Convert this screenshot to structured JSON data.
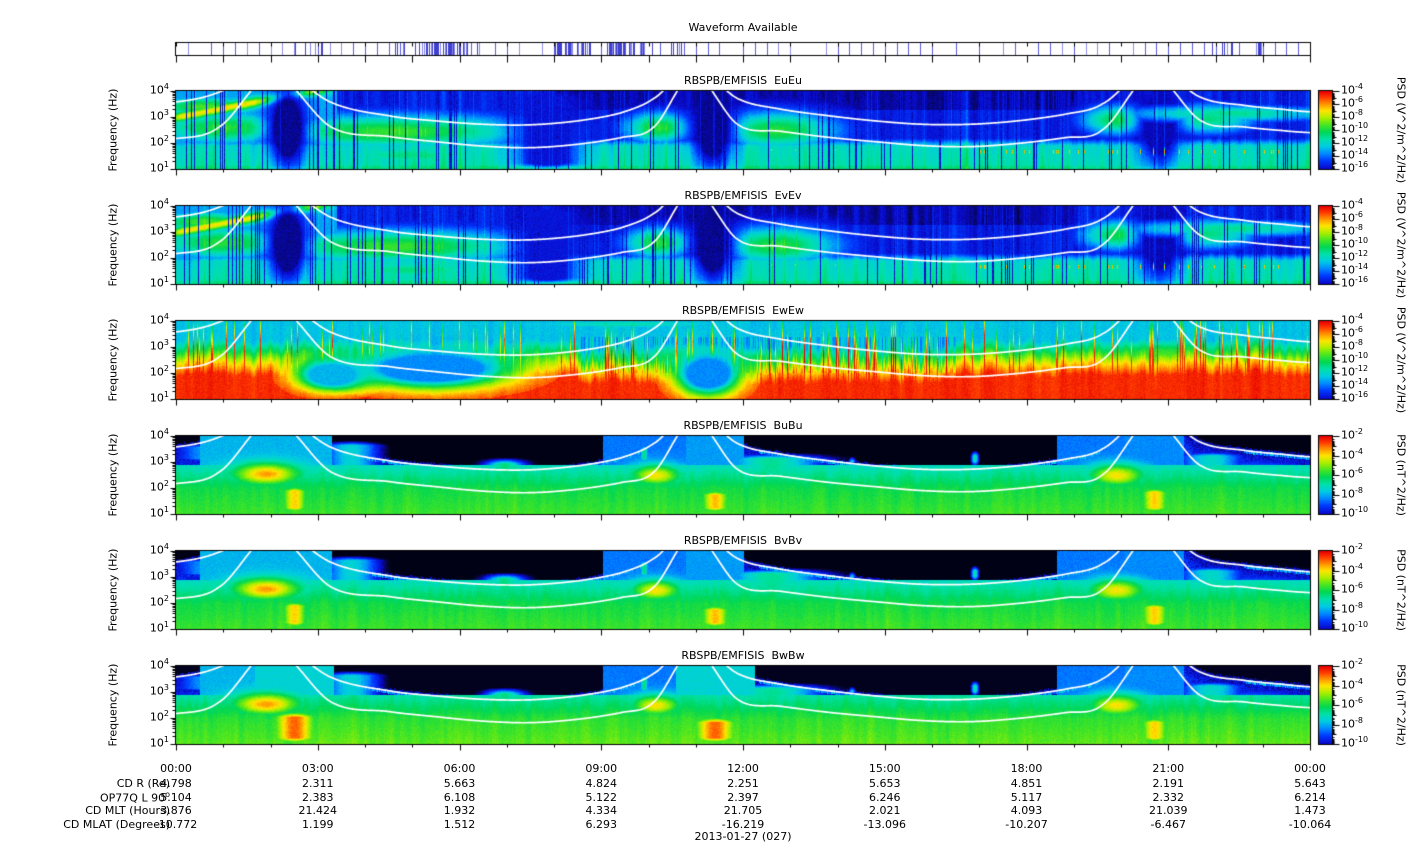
{
  "chart_data": {
    "type": "heatmap",
    "description": "Six 24-hour RBSP-B EMFISIS power spectral density spectrograms (EuEu, EvEv, EwEw electric; BuBu, BvBv, BwBw magnetic) with log frequency axis, rainbow colormap, white electron-cyclotron-related overlay curves, plus a waveform-availability bar.",
    "x_axis": {
      "unit": "hours",
      "range": [
        0,
        24
      ],
      "major_tick_hours": 3,
      "minor_tick_hours": 1,
      "tick_labels": [
        "00:00",
        "03:00",
        "06:00",
        "09:00",
        "12:00",
        "15:00",
        "18:00",
        "21:00",
        "00:00"
      ]
    },
    "y_axis": {
      "label": "Frequency (Hz)",
      "scale": "log",
      "range_exponents": [
        1,
        4
      ],
      "tick_exponents": [
        4,
        3,
        2,
        1
      ]
    },
    "panels": [
      {
        "title": "RBSPB/EMFISIS  EuEu",
        "kind": "E",
        "colorbar": "E",
        "seed": 11
      },
      {
        "title": "RBSPB/EMFISIS  EvEv",
        "kind": "E",
        "colorbar": "E",
        "seed": 22
      },
      {
        "title": "RBSPB/EMFISIS  EwEw",
        "kind": "Ew",
        "colorbar": "E",
        "seed": 33
      },
      {
        "title": "RBSPB/EMFISIS  BuBu",
        "kind": "B",
        "colorbar": "B",
        "seed": 44
      },
      {
        "title": "RBSPB/EMFISIS  BvBv",
        "kind": "B",
        "colorbar": "B",
        "seed": 55
      },
      {
        "title": "RBSPB/EMFISIS  BwBw",
        "kind": "Bw",
        "colorbar": "B",
        "seed": 66
      }
    ],
    "colorbars": {
      "E": {
        "label": "PSD (V^2/m^2/Hz)",
        "exponents": [
          -4,
          -6,
          -8,
          -10,
          -12,
          -14,
          -16
        ],
        "max": -4,
        "min": -16
      },
      "B": {
        "label": "PSD (nT^2/Hz)",
        "exponents": [
          -2,
          -4,
          -6,
          -8,
          -10
        ],
        "max": -2,
        "min": -10
      }
    },
    "colormap_stops": [
      [
        0.0,
        0,
        0,
        0
      ],
      [
        0.055,
        5,
        5,
        60
      ],
      [
        0.13,
        10,
        10,
        205
      ],
      [
        0.22,
        0,
        60,
        255
      ],
      [
        0.3,
        0,
        140,
        255
      ],
      [
        0.38,
        0,
        205,
        225
      ],
      [
        0.46,
        0,
        225,
        170
      ],
      [
        0.54,
        0,
        215,
        85
      ],
      [
        0.62,
        70,
        230,
        35
      ],
      [
        0.7,
        170,
        240,
        0
      ],
      [
        0.78,
        255,
        230,
        0
      ],
      [
        0.86,
        255,
        145,
        0
      ],
      [
        0.93,
        255,
        60,
        0
      ],
      [
        1.0,
        230,
        0,
        0
      ]
    ],
    "white_curves": {
      "upper": [
        [
          0,
          3.58
        ],
        [
          0.9,
          3.95
        ],
        [
          2.05,
          4.9
        ],
        [
          3.3,
          3.55
        ],
        [
          4.5,
          3.05
        ],
        [
          5.5,
          2.85
        ],
        [
          6.5,
          2.72
        ],
        [
          7.5,
          2.7
        ],
        [
          8.5,
          2.85
        ],
        [
          9.4,
          3.15
        ],
        [
          10.1,
          3.7
        ],
        [
          10.95,
          4.9
        ],
        [
          11.9,
          3.7
        ],
        [
          12.8,
          3.3
        ],
        [
          13.8,
          3.05
        ],
        [
          14.8,
          2.85
        ],
        [
          15.8,
          2.72
        ],
        [
          16.8,
          2.72
        ],
        [
          17.8,
          2.85
        ],
        [
          18.8,
          3.1
        ],
        [
          19.6,
          3.5
        ],
        [
          20.65,
          4.9
        ],
        [
          21.7,
          3.75
        ],
        [
          22.6,
          3.45
        ],
        [
          23.4,
          3.3
        ],
        [
          24,
          3.2
        ]
      ],
      "lower": [
        [
          0,
          2.17
        ],
        [
          0.9,
          2.6
        ],
        [
          2.05,
          4.6
        ],
        [
          3.3,
          2.6
        ],
        [
          4.5,
          2.25
        ],
        [
          5.5,
          2.05
        ],
        [
          6.5,
          1.88
        ],
        [
          7.5,
          1.82
        ],
        [
          8.5,
          1.95
        ],
        [
          9.4,
          2.2
        ],
        [
          10.1,
          2.6
        ],
        [
          10.95,
          4.6
        ],
        [
          11.9,
          2.7
        ],
        [
          12.8,
          2.45
        ],
        [
          13.8,
          2.22
        ],
        [
          14.8,
          2.05
        ],
        [
          15.8,
          1.9
        ],
        [
          16.8,
          1.86
        ],
        [
          17.8,
          1.98
        ],
        [
          18.8,
          2.2
        ],
        [
          19.6,
          2.5
        ],
        [
          20.65,
          4.6
        ],
        [
          21.7,
          2.85
        ],
        [
          22.6,
          2.62
        ],
        [
          23.4,
          2.48
        ],
        [
          24,
          2.4
        ]
      ]
    },
    "features": {
      "E": [
        [
          "diag",
          0,
          3.0,
          3.0,
          4.05,
          0.13,
          0.78
        ],
        [
          "blob",
          0.6,
          0.8,
          3.4,
          0.3,
          0.62
        ],
        [
          "blob",
          1.0,
          1.2,
          2.6,
          0.5,
          0.58
        ],
        [
          "blob",
          4.6,
          2.2,
          2.45,
          0.5,
          0.6
        ],
        [
          "blob",
          5.0,
          1.8,
          1.55,
          0.35,
          0.5
        ],
        [
          "dark",
          2.35,
          0.28,
          2.6,
          1.1,
          0.1
        ],
        [
          "blob",
          10.2,
          0.55,
          2.6,
          0.45,
          0.58
        ],
        [
          "blob",
          12.7,
          1.0,
          2.5,
          0.55,
          0.58
        ],
        [
          "dark",
          11.35,
          0.3,
          2.6,
          1.1,
          0.1
        ],
        [
          "dcol",
          7.85,
          0.45,
          1.0,
          4.0,
          0.15
        ],
        [
          "blob",
          19.9,
          0.6,
          2.9,
          0.45,
          0.55
        ],
        [
          "blob",
          21.8,
          0.9,
          2.95,
          0.5,
          0.5
        ],
        [
          "dark",
          20.8,
          0.3,
          2.7,
          1.1,
          0.12
        ],
        [
          "blob",
          22.3,
          2.0,
          3.15,
          0.28,
          0.48
        ],
        [
          "dots",
          17,
          23.5,
          1.68,
          0.08,
          0.85,
          0.1
        ],
        [
          "dots",
          11.9,
          14.5,
          1.75,
          0.07,
          0.7,
          0.06
        ]
      ],
      "Ew": [
        [
          "blob",
          2.6,
          1.3,
          2.5,
          0.45,
          0.62
        ],
        [
          "blob",
          10.9,
          1.1,
          2.6,
          0.45,
          0.6
        ],
        [
          "blob",
          12.1,
          0.9,
          2.5,
          0.4,
          0.58
        ],
        [
          "blob",
          20.9,
          1.6,
          2.7,
          0.5,
          0.62
        ],
        [
          "dark",
          5.4,
          1.1,
          2.2,
          0.5,
          0.3
        ],
        [
          "dark",
          3.3,
          0.5,
          1.95,
          0.4,
          0.35
        ],
        [
          "dark",
          11.25,
          0.45,
          2.0,
          0.55,
          0.3
        ],
        [
          "blob",
          9.5,
          2.8,
          3.9,
          0.18,
          0.45
        ]
      ],
      "B": [
        [
          "blob",
          1.9,
          0.5,
          2.55,
          0.3,
          0.85
        ],
        [
          "col",
          2.5,
          0.2,
          1.0,
          2.15,
          0.8
        ],
        [
          "col",
          3.7,
          0.5,
          2.5,
          3.9,
          0.4
        ],
        [
          "col",
          0.7,
          0.7,
          2.9,
          3.85,
          0.33
        ],
        [
          "blob",
          10.15,
          0.4,
          2.5,
          0.3,
          0.78
        ],
        [
          "col",
          11.4,
          0.22,
          1.0,
          2.0,
          0.82
        ],
        [
          "col",
          12.6,
          0.8,
          1.8,
          3.4,
          0.48
        ],
        [
          "blob",
          19.9,
          0.45,
          2.5,
          0.32,
          0.78
        ],
        [
          "col",
          20.7,
          0.22,
          1.0,
          2.1,
          0.8
        ],
        [
          "col",
          21.9,
          0.55,
          2.0,
          3.5,
          0.42
        ],
        [
          "blob",
          22.8,
          1.0,
          2.3,
          0.5,
          0.5
        ],
        [
          "col",
          6.95,
          0.3,
          1.5,
          3.2,
          0.5
        ],
        [
          "col",
          9.9,
          0.07,
          2.9,
          3.75,
          0.5
        ],
        [
          "col",
          16.9,
          0.06,
          2.8,
          3.5,
          0.45
        ],
        [
          "col",
          14.3,
          0.06,
          2.8,
          3.3,
          0.4
        ]
      ],
      "BwExtra": [
        [
          "col",
          2.5,
          0.3,
          1.0,
          2.3,
          0.9
        ],
        [
          "col",
          11.4,
          0.3,
          1.0,
          2.1,
          0.9
        ]
      ]
    },
    "waveform": {
      "title": "Waveform Available",
      "slot_hours": 0.25,
      "base_presence": 0.8,
      "clusters": [
        [
          0.1,
          0.136,
          0.55
        ],
        [
          0.193,
          0.206,
          0.55
        ],
        [
          0.211,
          0.268,
          0.9
        ],
        [
          0.334,
          0.414,
          0.95
        ],
        [
          0.418,
          0.453,
          0.45
        ],
        [
          0.907,
          0.934,
          0.55
        ],
        [
          0.95,
          0.958,
          0.75
        ]
      ]
    },
    "date_label": "2013-01-27 (027)"
  },
  "footer": {
    "time_labels": [
      "00:00",
      "03:00",
      "06:00",
      "09:00",
      "12:00",
      "15:00",
      "18:00",
      "21:00",
      "00:00"
    ],
    "rows": [
      {
        "label": "CD R (Re)",
        "sup": "",
        "values": [
          "4.798",
          "2.311",
          "5.663",
          "4.824",
          "2.251",
          "5.653",
          "4.851",
          "2.191",
          "5.643"
        ]
      },
      {
        "label": "OP77Q L 90",
        "sup": "o",
        "values": [
          "5.104",
          "2.383",
          "6.108",
          "5.122",
          "2.397",
          "6.246",
          "5.117",
          "2.332",
          "6.214"
        ]
      },
      {
        "label": "CD MLT (Hours)",
        "sup": "",
        "values": [
          "3.876",
          "21.424",
          "1.932",
          "4.334",
          "21.705",
          "2.021",
          "4.093",
          "21.039",
          "1.473"
        ]
      },
      {
        "label": "CD MLAT (Degrees)",
        "sup": "",
        "values": [
          "-10.772",
          "1.199",
          "1.512",
          "6.293",
          "-16.219",
          "-13.096",
          "-10.207",
          "-6.467",
          "-10.064"
        ]
      }
    ],
    "date_label": "2013-01-27 (027)"
  }
}
